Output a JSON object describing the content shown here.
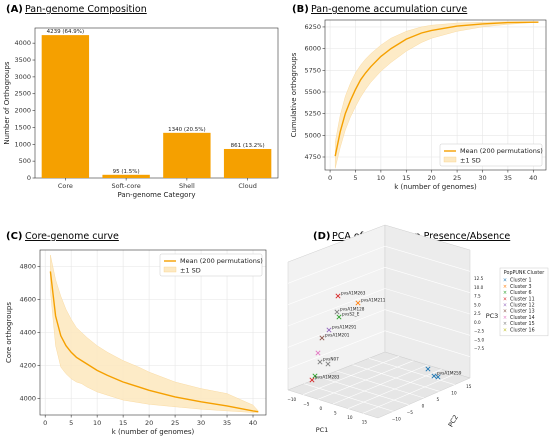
{
  "colors": {
    "orange": "#f5a000",
    "band": "#fde9c2",
    "grid": "#e6e6e6"
  },
  "panels": {
    "a": {
      "letter": "(A)",
      "title": "Pan-genome Composition"
    },
    "b": {
      "letter": "(B)",
      "title": "Pan-genome accumulation curve"
    },
    "c": {
      "letter": "(C)",
      "title": "Core-genome curve"
    },
    "d": {
      "letter": "(D)",
      "title": "PCA of Orthogroup Presence/Absence"
    }
  },
  "chart_data": [
    {
      "type": "bar",
      "title": "Pan-genome Composition",
      "categories": [
        "Core",
        "Soft-core",
        "Shell",
        "Cloud"
      ],
      "values": [
        4239,
        95,
        1340,
        861
      ],
      "data_labels": [
        "4239 (64.9%)",
        "95 (1.5%)",
        "1340 (20.5%)",
        "861 (13.2%)"
      ],
      "xlabel": "Pan-genome Category",
      "ylabel": "Number of Orthogroups",
      "ylim": [
        0,
        4450
      ],
      "yticks": [
        0,
        500,
        1000,
        1500,
        2000,
        2500,
        3000,
        3500,
        4000
      ],
      "grid": false
    },
    {
      "type": "line",
      "title": "Pan-genome accumulation curve",
      "xlabel": "k (number of genomes)",
      "ylabel": "Cumulative orthogroups",
      "xlim": [
        -1,
        42.5
      ],
      "ylim": [
        4600,
        6330
      ],
      "xticks": [
        0,
        5,
        10,
        15,
        20,
        25,
        30,
        35,
        40
      ],
      "yticks": [
        4750,
        5000,
        5250,
        5500,
        5750,
        6000,
        6250
      ],
      "grid": true,
      "legend_position": "bottom-right",
      "legend": [
        "Mean (200 permutations)",
        "±1 SD"
      ],
      "x": [
        1,
        2,
        3,
        4,
        5,
        6,
        7,
        8,
        10,
        12,
        15,
        18,
        20,
        25,
        30,
        35,
        40,
        41
      ],
      "mean": [
        4760,
        5040,
        5250,
        5400,
        5530,
        5640,
        5720,
        5790,
        5910,
        6000,
        6110,
        6180,
        6210,
        6260,
        6285,
        6300,
        6305,
        6305
      ],
      "upper": [
        4920,
        5230,
        5450,
        5600,
        5720,
        5810,
        5880,
        5940,
        6040,
        6120,
        6200,
        6250,
        6270,
        6295,
        6305,
        6310,
        6310,
        6310
      ],
      "lower": [
        4620,
        4860,
        5060,
        5210,
        5330,
        5440,
        5530,
        5610,
        5740,
        5840,
        5970,
        6070,
        6120,
        6200,
        6250,
        6280,
        6300,
        6305
      ]
    },
    {
      "type": "line",
      "title": "Core-genome curve",
      "xlabel": "k (number of genomes)",
      "ylabel": "Core orthogroups",
      "xlim": [
        -1,
        42.5
      ],
      "ylim": [
        3900,
        4900
      ],
      "xticks": [
        0,
        5,
        10,
        15,
        20,
        25,
        30,
        35,
        40
      ],
      "yticks": [
        4000,
        4200,
        4400,
        4600,
        4800
      ],
      "grid": true,
      "legend_position": "top-right",
      "legend": [
        "Mean (200 permutations)",
        "±1 SD"
      ],
      "x": [
        1,
        2,
        3,
        4,
        5,
        6,
        7,
        8,
        10,
        12,
        15,
        18,
        20,
        25,
        30,
        35,
        40,
        41
      ],
      "mean": [
        4770,
        4500,
        4380,
        4320,
        4280,
        4250,
        4230,
        4210,
        4170,
        4140,
        4100,
        4070,
        4050,
        4010,
        3980,
        3955,
        3925,
        3920
      ],
      "upper": [
        4870,
        4720,
        4620,
        4540,
        4480,
        4430,
        4400,
        4370,
        4320,
        4280,
        4230,
        4190,
        4160,
        4100,
        4060,
        4030,
        3960,
        3925
      ],
      "lower": [
        4650,
        4320,
        4190,
        4150,
        4120,
        4100,
        4090,
        4070,
        4040,
        4020,
        3990,
        3975,
        3965,
        3950,
        3935,
        3925,
        3915,
        3915
      ]
    },
    {
      "type": "scatter",
      "title": "PCA of Orthogroup Presence/Absence",
      "xlabel": "PC1",
      "ylabel": "PC2",
      "zlabel": "PC3",
      "legend_title": "PopPUNK Cluster",
      "legend_position": "right",
      "clusters": [
        {
          "name": "Cluster 1",
          "color": "#1f77b4",
          "marker": "x"
        },
        {
          "name": "Cluster 3",
          "color": "#ff7f0e",
          "marker": "x"
        },
        {
          "name": "Cluster 6",
          "color": "#2ca02c",
          "marker": "x"
        },
        {
          "name": "Cluster 11",
          "color": "#d62728",
          "marker": "x"
        },
        {
          "name": "Cluster 12",
          "color": "#9467bd",
          "marker": "x"
        },
        {
          "name": "Cluster 13",
          "color": "#8c564b",
          "marker": "x"
        },
        {
          "name": "Cluster 14",
          "color": "#e377c2",
          "marker": "x"
        },
        {
          "name": "Cluster 15",
          "color": "#7f7f7f",
          "marker": "x"
        },
        {
          "name": "Cluster 16",
          "color": "#bcbd22",
          "marker": "x"
        }
      ],
      "point_labels": [
        "pvsA1M263",
        "pvsA1M211",
        "pvsA1M128",
        "pvsS2_E",
        "pvsA1M291",
        "pvsA1M201",
        "pvsN07",
        "pvsA1M259",
        "pvsA1M283"
      ],
      "pc1_ticks": [
        "−10",
        "−5",
        "0",
        "5",
        "10",
        "15"
      ],
      "pc2_ticks": [
        "−10",
        "−5",
        "0",
        "5",
        "10",
        "15"
      ],
      "pc3_ticks": [
        "12.5",
        "10.0",
        "7.5",
        "5.0",
        "2.5",
        "0.0",
        "−2.5",
        "−5.0",
        "−7.5"
      ]
    }
  ]
}
